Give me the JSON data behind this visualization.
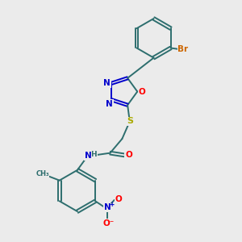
{
  "background_color": "#ebebeb",
  "bond_color": "#2d6e6e",
  "atom_colors": {
    "N": "#0000cc",
    "O": "#ff0000",
    "S": "#aaaa00",
    "Br": "#cc6600",
    "C": "#2d6e6e",
    "H": "#2d6e6e"
  },
  "lw": 1.4,
  "figsize": [
    3.0,
    3.0
  ],
  "dpi": 100
}
